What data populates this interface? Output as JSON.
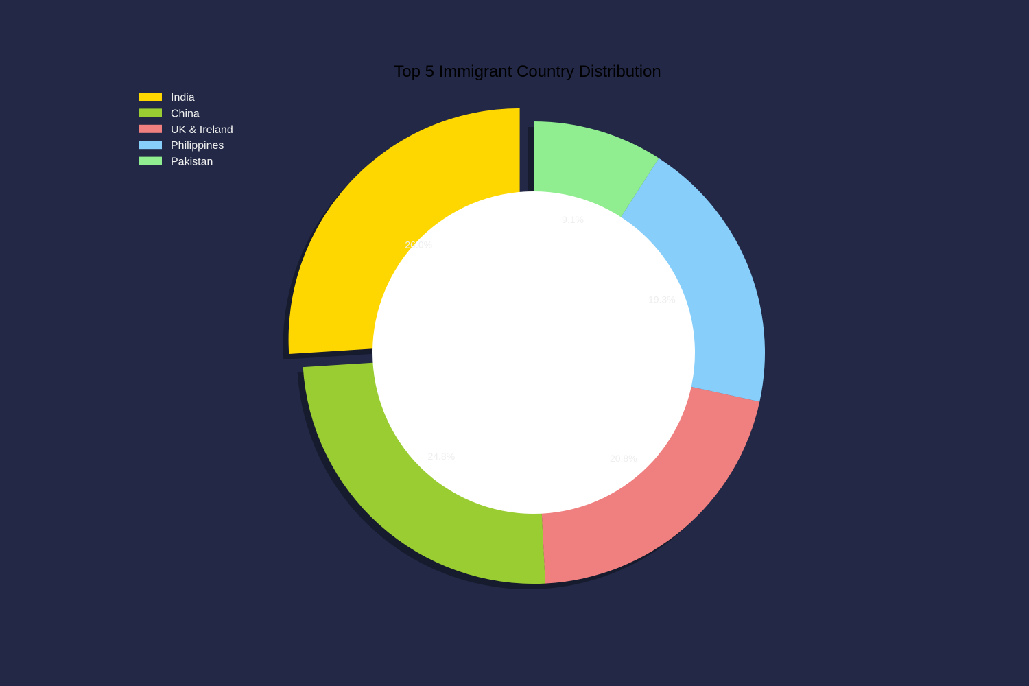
{
  "chart_data": {
    "type": "pie",
    "title": "Top 5 Immigrant Country Distribution",
    "legend_position": "top-left",
    "donut": true,
    "shadow": true,
    "start_angle_deg": 90,
    "direction": "counterclockwise",
    "slices": [
      {
        "label": "India",
        "value": 26.0,
        "pct_label": "26.0%",
        "color": "#FFD700",
        "exploded": true
      },
      {
        "label": "China",
        "value": 24.8,
        "pct_label": "24.8%",
        "color": "#9ACD32",
        "exploded": false
      },
      {
        "label": "UK & Ireland",
        "value": 20.8,
        "pct_label": "20.8%",
        "color": "#F08080",
        "exploded": false
      },
      {
        "label": "Philippines",
        "value": 19.3,
        "pct_label": "19.3%",
        "color": "#87CEFA",
        "exploded": false
      },
      {
        "label": "Pakistan",
        "value": 9.1,
        "pct_label": "9.1%",
        "color": "#90EE90",
        "exploded": false
      }
    ]
  }
}
